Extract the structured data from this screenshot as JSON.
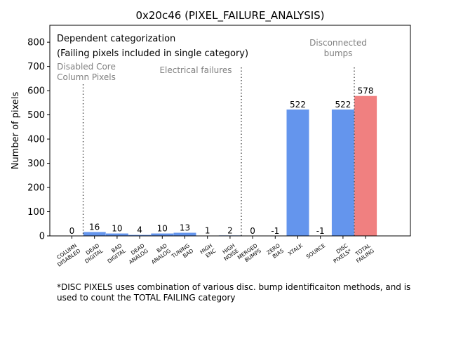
{
  "chart_data": {
    "type": "bar",
    "title": "0x20c46 (PIXEL_FAILURE_ANALYSIS)",
    "ylabel": "Number of pixels",
    "xlabel": "",
    "ylim": [
      0,
      870
    ],
    "yticks": [
      0,
      100,
      200,
      300,
      400,
      500,
      600,
      700,
      800
    ],
    "categories": [
      {
        "label": [
          "COLUMN",
          "DISABLED"
        ],
        "value": 0,
        "color": "#6495ed"
      },
      {
        "label": [
          "DEAD",
          "DIGITAL"
        ],
        "value": 16,
        "color": "#6495ed"
      },
      {
        "label": [
          "BAD",
          "DIGITAL"
        ],
        "value": 10,
        "color": "#6495ed"
      },
      {
        "label": [
          "DEAD",
          "ANALOG"
        ],
        "value": 4,
        "color": "#6495ed"
      },
      {
        "label": [
          "BAD",
          "ANALOG"
        ],
        "value": 10,
        "color": "#6495ed"
      },
      {
        "label": [
          "TUNING",
          "BAD"
        ],
        "value": 13,
        "color": "#6495ed"
      },
      {
        "label": [
          "HIGH",
          "ENC"
        ],
        "value": 1,
        "color": "#6495ed"
      },
      {
        "label": [
          "HIGH",
          "NOISE"
        ],
        "value": 2,
        "color": "#6495ed"
      },
      {
        "label": [
          "MERGED",
          "BUMPS"
        ],
        "value": 0,
        "color": "#6495ed"
      },
      {
        "label": [
          "ZERO",
          "BIAS"
        ],
        "value": -1,
        "color": "#6495ed"
      },
      {
        "label": [
          "XTALK"
        ],
        "value": 522,
        "color": "#6495ed"
      },
      {
        "label": [
          "SOURCE"
        ],
        "value": -1,
        "color": "#6495ed"
      },
      {
        "label": [
          "DISC",
          "PIXELS*"
        ],
        "value": 522,
        "color": "#6495ed"
      },
      {
        "label": [
          "TOTAL",
          "FAILING"
        ],
        "value": 578,
        "color": "#f08080"
      }
    ],
    "annotations": {
      "categorization_title": "Dependent categorization",
      "categorization_subtitle": "(Failing pixels included in single category)",
      "group_disabled": [
        "Disabled Core",
        "Column Pixels"
      ],
      "group_electrical": [
        "Electrical failures"
      ],
      "group_disconnected": [
        "Disconnected",
        "bumps"
      ]
    },
    "separators_after_category_index": [
      0,
      7,
      12
    ],
    "footnote": [
      "*DISC PIXELS uses combination of various disc. bump identificaiton methods, and is",
      "used to count the TOTAL FAILING category"
    ]
  }
}
